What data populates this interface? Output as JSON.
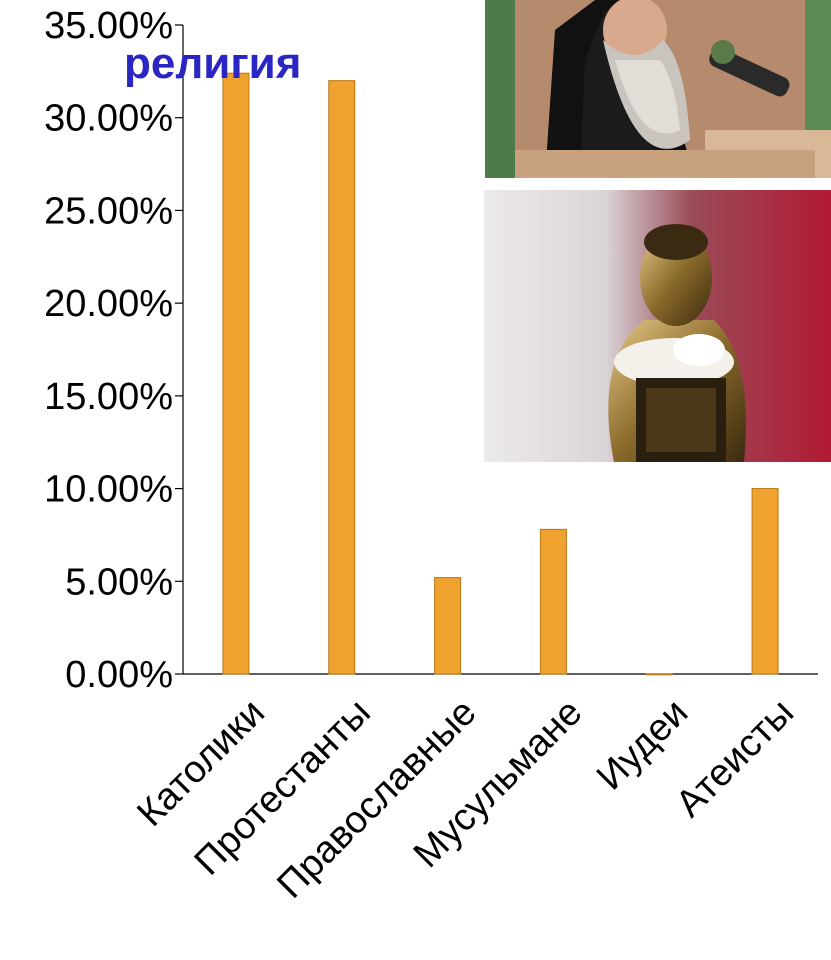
{
  "chart_data": {
    "type": "bar",
    "title": "религия",
    "categories": [
      "Католики",
      "Протестанты",
      "Православные",
      "Мусульмане",
      "Иудеи",
      "Атеисты"
    ],
    "values": [
      32.4,
      32.0,
      5.2,
      7.8,
      0.0,
      10.0
    ],
    "ylim": [
      0,
      35
    ],
    "yticks": [
      0,
      5,
      10,
      15,
      20,
      25,
      30,
      35
    ],
    "ytick_labels": [
      "0.00%",
      "5.00%",
      "10.00%",
      "15.00%",
      "20.00%",
      "25.00%",
      "30.00%",
      "35.00%"
    ],
    "xlabel": "",
    "ylabel": "",
    "grid": false,
    "legend": "none",
    "bar_color": "#f0a22e",
    "bar_edge_color": "#b97813",
    "title_color": "#2a26c4"
  },
  "images": [
    {
      "name": "priest-photo",
      "subject": "bearded orthodox priest at microphone"
    },
    {
      "name": "buddha-photo",
      "subject": "golden buddha statue"
    }
  ]
}
